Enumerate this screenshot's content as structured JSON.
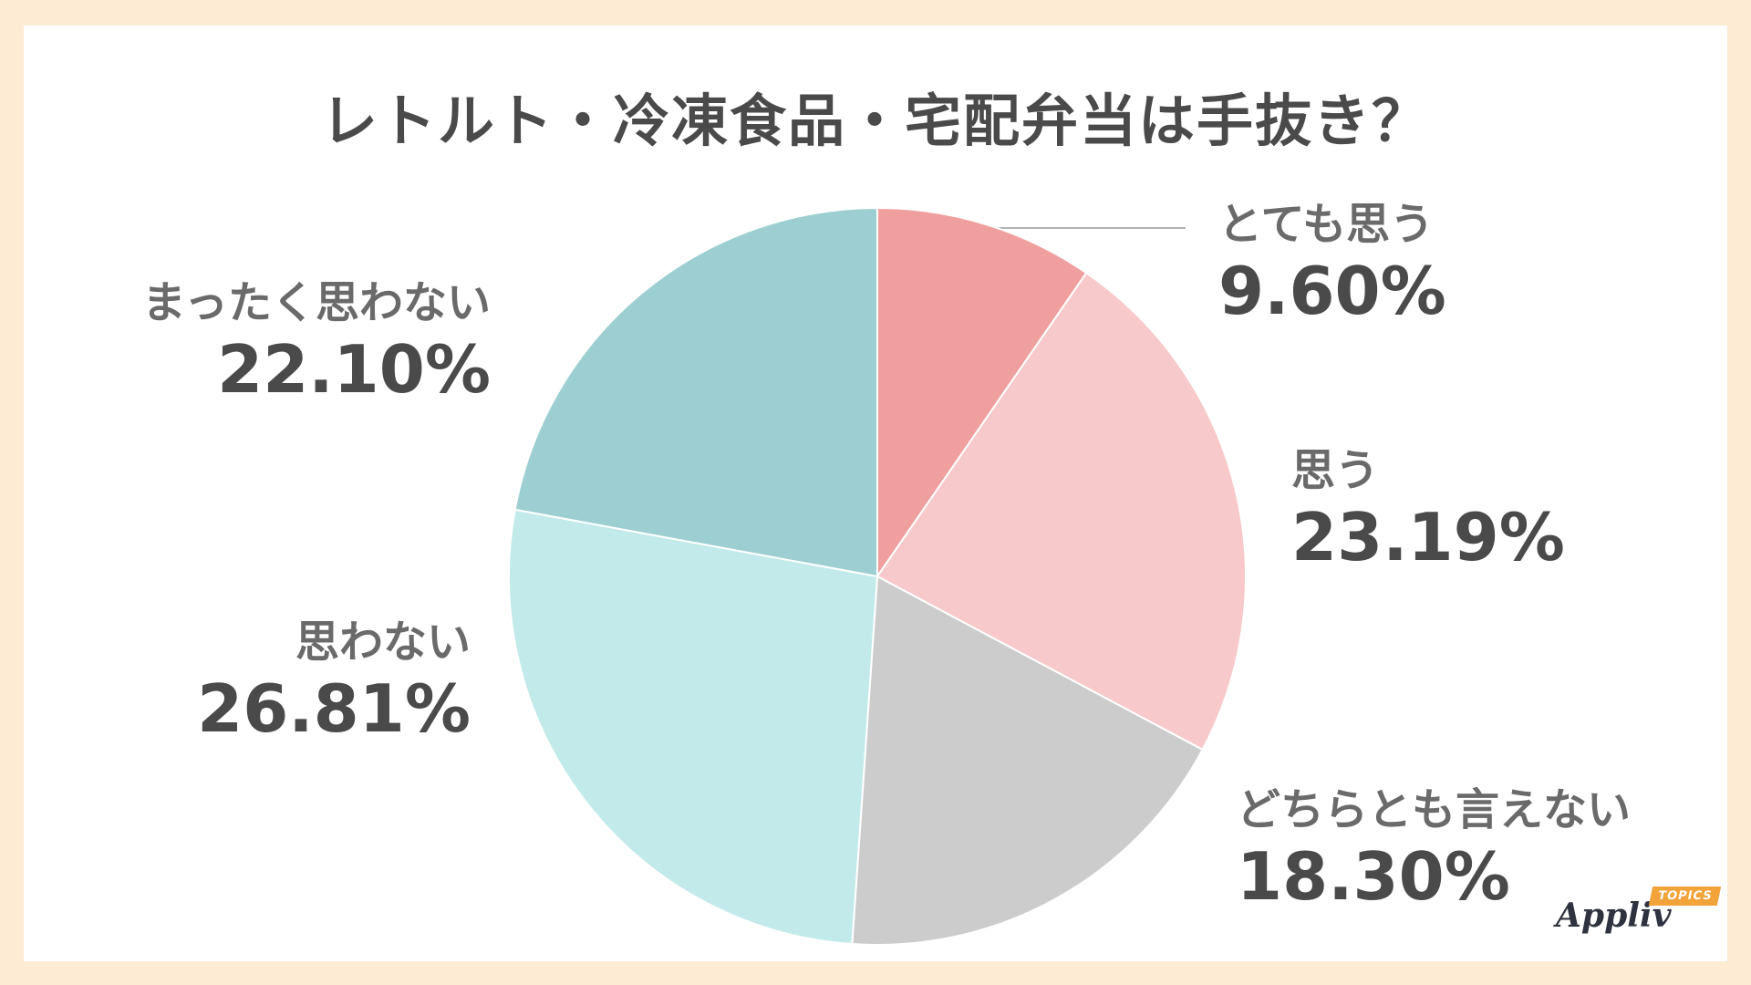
{
  "title": "レトルト・冷凍食品・宅配弁当は手抜き？",
  "chart_data": {
    "type": "pie",
    "title": "レトルト・冷凍食品・宅配弁当は手抜き？",
    "slices": [
      {
        "label": "とても思う",
        "value": 9.6,
        "value_text": "9.60%",
        "color": "#f09f9f"
      },
      {
        "label": "思う",
        "value": 23.19,
        "value_text": "23.19%",
        "color": "#f7c9ca"
      },
      {
        "label": "どちらとも言えない",
        "value": 18.3,
        "value_text": "18.30%",
        "color": "#cccccc"
      },
      {
        "label": "思わない",
        "value": 26.81,
        "value_text": "26.81%",
        "color": "#c2eaea"
      },
      {
        "label": "まったく思わない",
        "value": 22.1,
        "value_text": "22.10%",
        "color": "#9dcfd2"
      }
    ]
  },
  "logo": {
    "word": "Appliv",
    "badge": "TOPICS"
  }
}
